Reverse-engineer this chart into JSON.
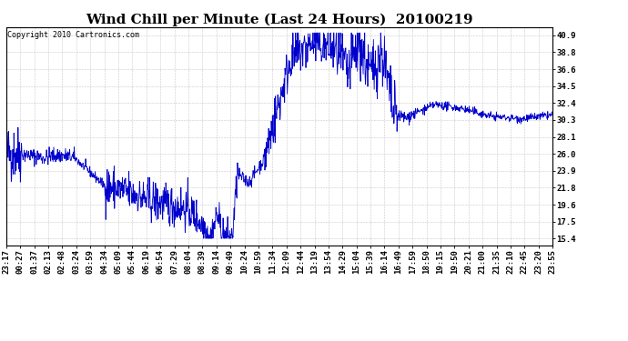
{
  "title": "Wind Chill per Minute (Last 24 Hours)  20100219",
  "copyright": "Copyright 2010 Cartronics.com",
  "line_color": "#0000CC",
  "bg_color": "#ffffff",
  "grid_color": "#bbbbbb",
  "y_ticks": [
    15.4,
    17.5,
    19.6,
    21.8,
    23.9,
    26.0,
    28.1,
    30.3,
    32.4,
    34.5,
    36.6,
    38.8,
    40.9
  ],
  "ylim": [
    14.5,
    41.9
  ],
  "x_tick_labels": [
    "23:17",
    "00:27",
    "01:37",
    "02:13",
    "02:48",
    "03:24",
    "03:59",
    "04:34",
    "05:09",
    "05:44",
    "06:19",
    "06:54",
    "07:29",
    "08:04",
    "08:39",
    "09:14",
    "09:49",
    "10:24",
    "10:59",
    "11:34",
    "12:09",
    "12:44",
    "13:19",
    "13:54",
    "14:29",
    "15:04",
    "15:39",
    "16:14",
    "16:49",
    "17:59",
    "18:50",
    "19:15",
    "19:50",
    "20:21",
    "21:00",
    "21:35",
    "22:10",
    "22:45",
    "23:20",
    "23:55"
  ],
  "title_fontsize": 11,
  "label_fontsize": 6.5,
  "copyright_fontsize": 6.0
}
